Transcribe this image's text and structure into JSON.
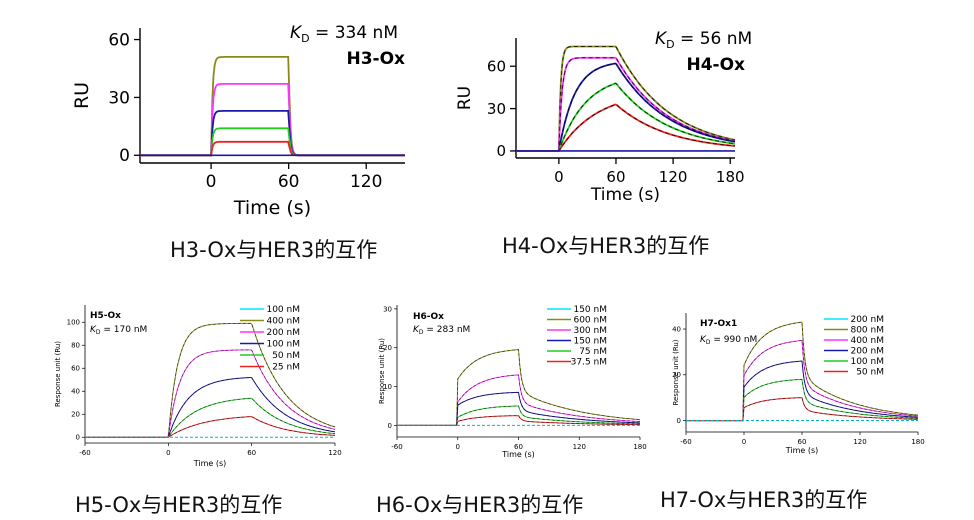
{
  "chart_data": [
    {
      "type": "line",
      "title": "H3-Ox",
      "kd_value": "= 334 nM",
      "xlabel": "Time (s)",
      "ylabel": "RU",
      "xlim": [
        -55,
        150
      ],
      "ylim": [
        -4,
        66
      ],
      "xticks": [
        0,
        60,
        120
      ],
      "yticks": [
        0,
        30,
        60
      ],
      "grid": false,
      "model": {
        "t0": 0,
        "t1": 60,
        "ka": 0.9,
        "kd": 0.9
      },
      "series": [
        {
          "name": "s1",
          "color": "#8a8a1a",
          "plateau": 51
        },
        {
          "name": "s2",
          "color": "#ff33ff",
          "plateau": 37
        },
        {
          "name": "s3",
          "color": "#1a1aaa",
          "plateau": 23
        },
        {
          "name": "s4",
          "color": "#22cc22",
          "plateau": 14
        },
        {
          "name": "s5",
          "color": "#ee2222",
          "plateau": 7
        }
      ]
    },
    {
      "type": "line",
      "title": "H4-Ox",
      "kd_value": "= 56 nM",
      "xlabel": "Time (s)",
      "ylabel": "RU",
      "xlim": [
        -45,
        185
      ],
      "ylim": [
        -5,
        80
      ],
      "xticks": [
        0,
        60,
        120,
        180
      ],
      "yticks": [
        0,
        30,
        60
      ],
      "grid": false,
      "model": {
        "t0": 0,
        "t1": 60,
        "ka": 0.3,
        "kd": 0.018
      },
      "series": [
        {
          "name": "s1",
          "color": "#8a8a1a",
          "plateau": 74,
          "ka": 0.5
        },
        {
          "name": "s2",
          "color": "#ff33ff",
          "plateau": 66,
          "ka": 0.3
        },
        {
          "name": "s3",
          "color": "#1a1aaa",
          "plateau": 62,
          "ka": 0.06
        },
        {
          "name": "s4",
          "color": "#22cc22",
          "plateau": 48,
          "ka": 0.035
        },
        {
          "name": "s5",
          "color": "#ee2222",
          "plateau": 33,
          "ka": 0.025
        }
      ]
    },
    {
      "type": "line",
      "title": "H5-Ox",
      "kd_value": "= 170 nM",
      "xlabel": "Time (s)",
      "ylabel": "Response unit (Ru)",
      "xlim": [
        -60,
        120
      ],
      "ylim": [
        -5,
        115
      ],
      "xticks": [
        -60,
        0,
        60,
        120
      ],
      "yticks": [
        0,
        20,
        40,
        60,
        80,
        100
      ],
      "grid": false,
      "legend": "top-right",
      "model": {
        "t0": 0,
        "t1": 60,
        "ka": 0.1,
        "kd": 0.04
      },
      "series": [
        {
          "name": "100 nM",
          "color": "#00e5ff",
          "plateau": 0
        },
        {
          "name": "400 nM",
          "color": "#8a8a1a",
          "plateau": 99,
          "ka": 0.15
        },
        {
          "name": "200 nM",
          "color": "#ff33ff",
          "plateau": 76,
          "ka": 0.12
        },
        {
          "name": "100 nM",
          "color": "#1a1aaa",
          "plateau": 52,
          "ka": 0.07
        },
        {
          "name": "50 nM",
          "color": "#22cc22",
          "plateau": 34,
          "ka": 0.05
        },
        {
          "name": "25 nM",
          "color": "#ee2222",
          "plateau": 18,
          "ka": 0.04
        }
      ]
    },
    {
      "type": "line",
      "title": "H6-Ox",
      "kd_value": "= 283 nM",
      "xlabel": "Time (s)",
      "ylabel": "Response unit (Ru)",
      "xlim": [
        -60,
        180
      ],
      "ylim": [
        -3,
        31
      ],
      "xticks": [
        -60,
        0,
        60,
        120,
        180
      ],
      "yticks": [
        0,
        10,
        20,
        30
      ],
      "grid": false,
      "legend": "top-right",
      "model": {
        "t0": 0,
        "t1": 60,
        "ka": 0.05,
        "kd": 0.06
      },
      "series": [
        {
          "name": "150 nM",
          "color": "#00e5ff",
          "plateau": 0
        },
        {
          "name": "600 nM",
          "color": "#8a8a1a",
          "plateau": 19.5,
          "jump": 0.6
        },
        {
          "name": "300 nM",
          "color": "#ff33ff",
          "plateau": 13,
          "jump": 0.45
        },
        {
          "name": "150 nM",
          "color": "#1a1aaa",
          "plateau": 8.5,
          "jump": 0.6
        },
        {
          "name": "75 nM",
          "color": "#22cc22",
          "plateau": 5,
          "jump": 0.4
        },
        {
          "name": "37.5 nM",
          "color": "#ee2222",
          "plateau": 2.5,
          "jump": 0.4
        }
      ]
    },
    {
      "type": "line",
      "title": "H7-Ox1",
      "kd_value": "= 990 nM",
      "xlabel": "Time (s)",
      "ylabel": "Response unit (Ru)",
      "xlim": [
        -60,
        180
      ],
      "ylim": [
        -5,
        47
      ],
      "xticks": [
        -60,
        0,
        60,
        120,
        180
      ],
      "yticks": [
        0,
        20,
        40
      ],
      "grid": false,
      "legend": "top-right",
      "model": {
        "t0": 0,
        "t1": 60,
        "ka": 0.05,
        "kd": 0.07
      },
      "series": [
        {
          "name": "200 nM",
          "color": "#00e5ff",
          "plateau": 0
        },
        {
          "name": "800 nM",
          "color": "#8a8a1a",
          "plateau": 43,
          "jump": 0.55
        },
        {
          "name": "400 nM",
          "color": "#ff33ff",
          "plateau": 35,
          "jump": 0.55
        },
        {
          "name": "200 nM",
          "color": "#1a1aaa",
          "plateau": 26,
          "jump": 0.55
        },
        {
          "name": "100 nM",
          "color": "#22cc22",
          "plateau": 18,
          "jump": 0.55
        },
        {
          "name": "50 nM",
          "color": "#ee2222",
          "plateau": 10,
          "jump": 0.55
        }
      ]
    }
  ],
  "captions": [
    "H3-Ox与HER3的互作",
    "H4-Ox与HER3的互作",
    "H5-Ox与HER3的互作",
    "H6-Ox与HER3的互作",
    "H7-Ox与HER3的互作"
  ]
}
